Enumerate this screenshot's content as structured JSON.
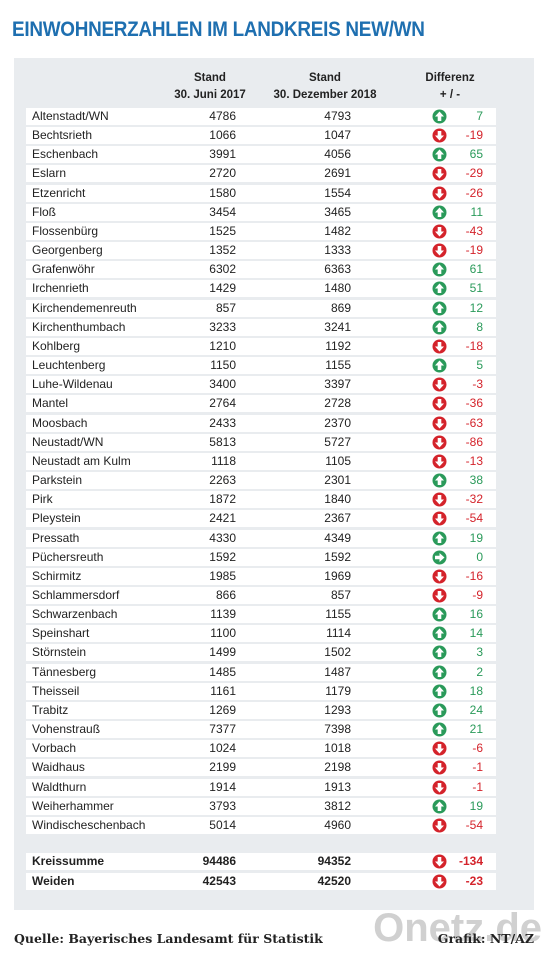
{
  "title": "EINWOHNERZAHLEN IM LANDKREIS NEW/WN",
  "table": {
    "header": [
      [
        "Stand",
        "30. Juni 2017"
      ],
      [
        "Stand",
        "30. Dezember 2018"
      ],
      [
        "Differenz",
        "+ / -"
      ]
    ],
    "rows": [
      [
        "Altenstadt/WN",
        4786,
        4793,
        7
      ],
      [
        "Bechtsrieth",
        1066,
        1047,
        -19
      ],
      [
        "Eschenbach",
        3991,
        4056,
        65
      ],
      [
        "Eslarn",
        2720,
        2691,
        -29
      ],
      [
        "Etzenricht",
        1580,
        1554,
        -26
      ],
      [
        "Floß",
        3454,
        3465,
        11
      ],
      [
        "Flossenbürg",
        1525,
        1482,
        -43
      ],
      [
        "Georgenberg",
        1352,
        1333,
        -19
      ],
      [
        "Grafenwöhr",
        6302,
        6363,
        61
      ],
      [
        "Irchenrieth",
        1429,
        1480,
        51
      ],
      [
        "Kirchendemenreuth",
        857,
        869,
        12
      ],
      [
        "Kirchenthumbach",
        3233,
        3241,
        8
      ],
      [
        "Kohlberg",
        1210,
        1192,
        -18
      ],
      [
        "Leuchtenberg",
        1150,
        1155,
        5
      ],
      [
        "Luhe-Wildenau",
        3400,
        3397,
        -3
      ],
      [
        "Mantel",
        2764,
        2728,
        -36
      ],
      [
        "Moosbach",
        2433,
        2370,
        -63
      ],
      [
        "Neustadt/WN",
        5813,
        5727,
        -86
      ],
      [
        "Neustadt am Kulm",
        1118,
        1105,
        -13
      ],
      [
        "Parkstein",
        2263,
        2301,
        38
      ],
      [
        "Pirk",
        1872,
        1840,
        -32
      ],
      [
        "Pleystein",
        2421,
        2367,
        -54
      ],
      [
        "Pressath",
        4330,
        4349,
        19
      ],
      [
        "Püchersreuth",
        1592,
        1592,
        0
      ],
      [
        "Schirmitz",
        1985,
        1969,
        -16
      ],
      [
        "Schlammersdorf",
        866,
        857,
        -9
      ],
      [
        "Schwarzenbach",
        1139,
        1155,
        16
      ],
      [
        "Speinshart",
        1100,
        1114,
        14
      ],
      [
        "Störnstein",
        1499,
        1502,
        3
      ],
      [
        "Tännesberg",
        1485,
        1487,
        2
      ],
      [
        "Theisseil",
        1161,
        1179,
        18
      ],
      [
        "Trabitz",
        1269,
        1293,
        24
      ],
      [
        "Vohenstrauß",
        7377,
        7398,
        21
      ],
      [
        "Vorbach",
        1024,
        1018,
        -6
      ],
      [
        "Waidhaus",
        2199,
        2198,
        -1
      ],
      [
        "Waldthurn",
        1914,
        1913,
        -1
      ],
      [
        "Weiherhammer",
        3793,
        3812,
        19
      ],
      [
        "Windischeschenbach",
        5014,
        4960,
        -54
      ]
    ],
    "totals": [
      [
        "Kreissumme",
        94486,
        94352,
        -134
      ],
      [
        "Weiden",
        42543,
        42520,
        -23
      ]
    ]
  },
  "source": "Quelle: Bayerisches Landesamt für Statistik",
  "credit": "Grafik: NT/AZ",
  "watermark": "Onetz.de"
}
